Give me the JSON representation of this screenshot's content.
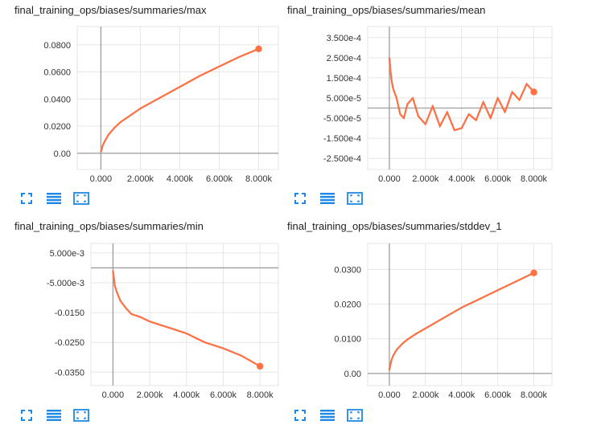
{
  "theme": {
    "series_color": "#ff7043",
    "shadow_color": "#3f5d8a",
    "axis_color": "#9e9e9e",
    "grid_color": "#e6e6e6",
    "button_color": "#1e88e5"
  },
  "toolbar_icons": [
    "expand-icon",
    "toggle-log-scale-icon",
    "fit-domain-icon"
  ],
  "chart_data": [
    {
      "title": "final_training_ops/biases/summaries/max",
      "type": "line",
      "xlabel": "",
      "ylabel": "",
      "xlim": [
        -1200,
        9000
      ],
      "ylim": [
        -0.012,
        0.0935
      ],
      "xticks": [
        0,
        2000,
        4000,
        6000,
        8000
      ],
      "xtick_labels": [
        "0.000",
        "2.000k",
        "4.000k",
        "6.000k",
        "8.000k"
      ],
      "yticks": [
        0,
        0.02,
        0.04,
        0.06,
        0.08
      ],
      "ytick_labels": [
        "0.00",
        "0.0200",
        "0.0400",
        "0.0600",
        "0.0800"
      ],
      "grid": true,
      "x": [
        0,
        100,
        200,
        400,
        700,
        1000,
        1500,
        2000,
        3000,
        4000,
        5000,
        6000,
        7000,
        8000
      ],
      "y": [
        0.001,
        0.006,
        0.009,
        0.014,
        0.019,
        0.023,
        0.028,
        0.033,
        0.041,
        0.049,
        0.057,
        0.064,
        0.071,
        0.077
      ]
    },
    {
      "title": "final_training_ops/biases/summaries/mean",
      "type": "line",
      "xlabel": "",
      "ylabel": "",
      "xlim": [
        -1200,
        9000
      ],
      "ylim": [
        -0.000305,
        0.000405
      ],
      "xticks": [
        0,
        2000,
        4000,
        6000,
        8000
      ],
      "xtick_labels": [
        "0.000",
        "2.000k",
        "4.000k",
        "6.000k",
        "8.000k"
      ],
      "yticks": [
        -0.00025,
        -0.00015,
        -5e-05,
        5e-05,
        0.00015,
        0.00025,
        0.00035
      ],
      "ytick_labels": [
        "-2.500e-4",
        "-1.500e-4",
        "-5.000e-5",
        "5.000e-5",
        "1.500e-4",
        "2.500e-4",
        "3.500e-4"
      ],
      "grid": true,
      "x": [
        0,
        100,
        200,
        400,
        600,
        800,
        1000,
        1300,
        1600,
        2000,
        2400,
        2800,
        3200,
        3600,
        4000,
        4400,
        4800,
        5200,
        5600,
        6000,
        6400,
        6800,
        7200,
        7600,
        8000
      ],
      "y": [
        0.00025,
        0.00015,
        0.0001,
        5e-05,
        -3e-05,
        -5e-05,
        2e-05,
        5e-05,
        -4e-05,
        -8e-05,
        1e-05,
        -9e-05,
        -2e-05,
        -0.00011,
        -0.0001,
        -3e-05,
        -6e-05,
        3e-05,
        -5e-05,
        5e-05,
        -2e-05,
        8e-05,
        4e-05,
        0.00012,
        8e-05
      ]
    },
    {
      "title": "final_training_ops/biases/summaries/min",
      "type": "line",
      "xlabel": "",
      "ylabel": "",
      "xlim": [
        -1200,
        9000
      ],
      "ylim": [
        -0.0395,
        0.0082
      ],
      "xticks": [
        0,
        2000,
        4000,
        6000,
        8000
      ],
      "xtick_labels": [
        "0.000",
        "2.000k",
        "4.000k",
        "6.000k",
        "8.000k"
      ],
      "yticks": [
        -0.035,
        -0.025,
        -0.015,
        -0.005,
        0.005
      ],
      "ytick_labels": [
        "-0.0350",
        "-0.0250",
        "-0.0150",
        "-5.000e-3",
        "5.000e-3"
      ],
      "grid": true,
      "x": [
        0,
        100,
        200,
        400,
        700,
        1000,
        1500,
        2000,
        2500,
        3000,
        4000,
        5000,
        6000,
        7000,
        8000
      ],
      "y": [
        -0.001,
        -0.006,
        -0.008,
        -0.011,
        -0.0135,
        -0.0155,
        -0.0165,
        -0.018,
        -0.019,
        -0.02,
        -0.022,
        -0.025,
        -0.027,
        -0.0295,
        -0.033
      ]
    },
    {
      "title": "final_training_ops/biases/summaries/stddev_1",
      "type": "line",
      "xlabel": "",
      "ylabel": "",
      "xlim": [
        -1200,
        9000
      ],
      "ylim": [
        -0.0035,
        0.0375
      ],
      "xticks": [
        0,
        2000,
        4000,
        6000,
        8000
      ],
      "xtick_labels": [
        "0.000",
        "2.000k",
        "4.000k",
        "6.000k",
        "8.000k"
      ],
      "yticks": [
        0,
        0.01,
        0.02,
        0.03
      ],
      "ytick_labels": [
        "0.00",
        "0.0100",
        "0.0200",
        "0.0300"
      ],
      "grid": true,
      "x": [
        0,
        100,
        200,
        400,
        700,
        1000,
        1500,
        2000,
        3000,
        4000,
        5000,
        6000,
        7000,
        8000
      ],
      "y": [
        0.001,
        0.0035,
        0.005,
        0.0068,
        0.0085,
        0.0098,
        0.0115,
        0.013,
        0.016,
        0.019,
        0.0215,
        0.024,
        0.0265,
        0.029
      ]
    }
  ]
}
